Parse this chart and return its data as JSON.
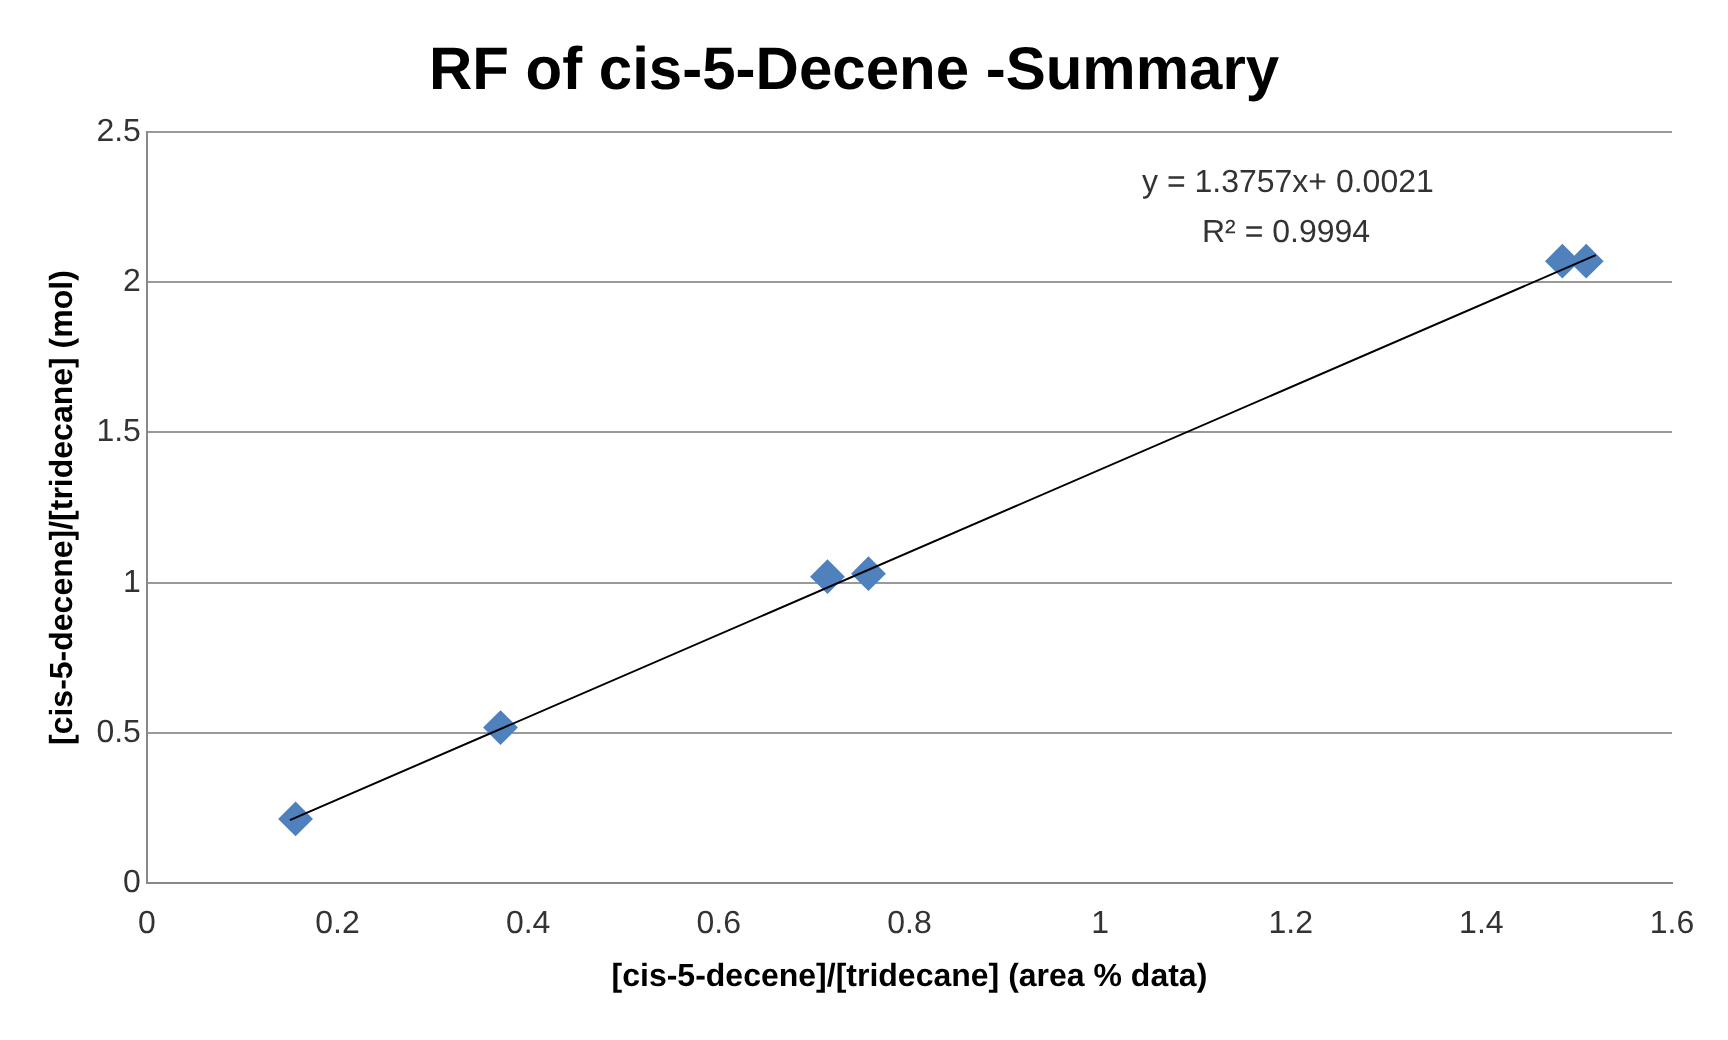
{
  "chart_data": {
    "type": "scatter",
    "title": "RF of cis-5-Decene -Summary",
    "xlabel": "[cis-5-decene]/[tridecane] (area % data)",
    "ylabel": "[cis-5-decene]/[tridecane] (mol)",
    "xlim": [
      0,
      1.6
    ],
    "xticks": [
      0,
      0.2,
      0.4,
      0.6,
      0.8,
      1,
      1.2,
      1.4,
      1.6
    ],
    "ylim": [
      0,
      2.5
    ],
    "yticks": [
      0,
      0.5,
      1,
      1.5,
      2,
      2.5
    ],
    "grid": "y",
    "marker": "diamond",
    "legend": false,
    "annotations": [
      "y = 1.3757x+ 0.0021",
      "R² = 0.9994"
    ],
    "series": [
      {
        "type": "scatter",
        "color": "#4f81bd",
        "x": [
          0.156,
          0.371,
          0.714,
          0.757,
          1.485,
          1.51
        ],
        "values": [
          0.214,
          0.518,
          1.02,
          1.03,
          2.07,
          2.07
        ]
      },
      {
        "type": "line",
        "color": "#000000",
        "x": [
          0.15,
          1.52
        ],
        "values": [
          0.21,
          2.09
        ],
        "marker": "none"
      }
    ]
  }
}
